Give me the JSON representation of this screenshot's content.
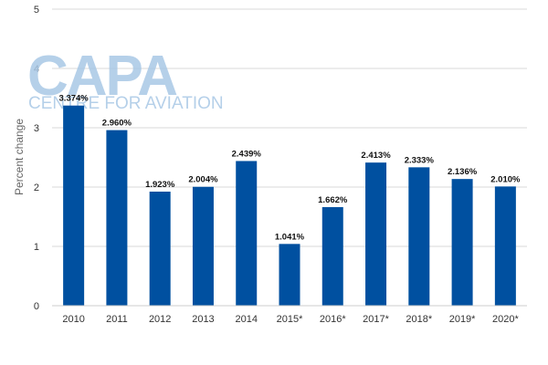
{
  "chart_data": {
    "type": "bar",
    "categories": [
      "2010",
      "2011",
      "2012",
      "2013",
      "2014",
      "2015*",
      "2016*",
      "2017*",
      "2018*",
      "2019*",
      "2020*"
    ],
    "values": [
      3.374,
      2.96,
      1.923,
      2.004,
      2.439,
      1.041,
      1.662,
      2.413,
      2.333,
      2.136,
      2.01
    ],
    "data_labels": [
      "3.374%",
      "2.960%",
      "1.923%",
      "2.004%",
      "2.439%",
      "1.041%",
      "1.662%",
      "2.413%",
      "2.333%",
      "2.136%",
      "2.010%"
    ],
    "title": "",
    "xlabel": "",
    "ylabel": "Percent change",
    "ylim": [
      0,
      5
    ],
    "yticks": [
      0,
      1,
      2,
      3,
      4,
      5
    ],
    "grid": true,
    "bar_color": "#0050a0"
  },
  "watermark": {
    "logo_text": "CAPA",
    "tagline": "CENTRE FOR AVIATION",
    "color": "#a9c8e6"
  }
}
